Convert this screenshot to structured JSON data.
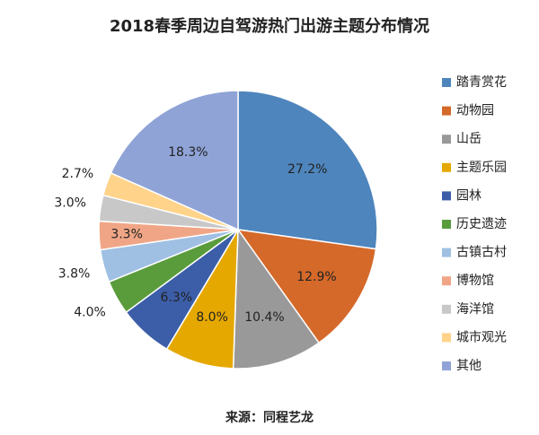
{
  "chart_data": {
    "type": "pie",
    "title": "2018春季周边自驾游热门出游主题分布情况",
    "categories": [
      "踏青赏花",
      "动物园",
      "山岳",
      "主题乐园",
      "园林",
      "历史遗迹",
      "古镇古村",
      "博物馆",
      "海洋馆",
      "城市观光",
      "其他"
    ],
    "values": [
      27.2,
      12.9,
      10.4,
      8.0,
      6.3,
      4.0,
      3.8,
      3.3,
      3.0,
      2.7,
      18.3
    ],
    "value_labels": [
      "27.2%",
      "12.9%",
      "10.4%",
      "8.0%",
      "6.3%",
      "4.0%",
      "3.8%",
      "3.3%",
      "3.0%",
      "2.7%",
      "18.3%"
    ],
    "colors": [
      "#4e85bd",
      "#d5692a",
      "#999999",
      "#e5a800",
      "#3c5ea8",
      "#5a9c3c",
      "#9fbfe3",
      "#f0a686",
      "#c8c8c8",
      "#ffd38a",
      "#8fa3d6"
    ],
    "legend": "right",
    "source": "来源：同程艺龙"
  }
}
